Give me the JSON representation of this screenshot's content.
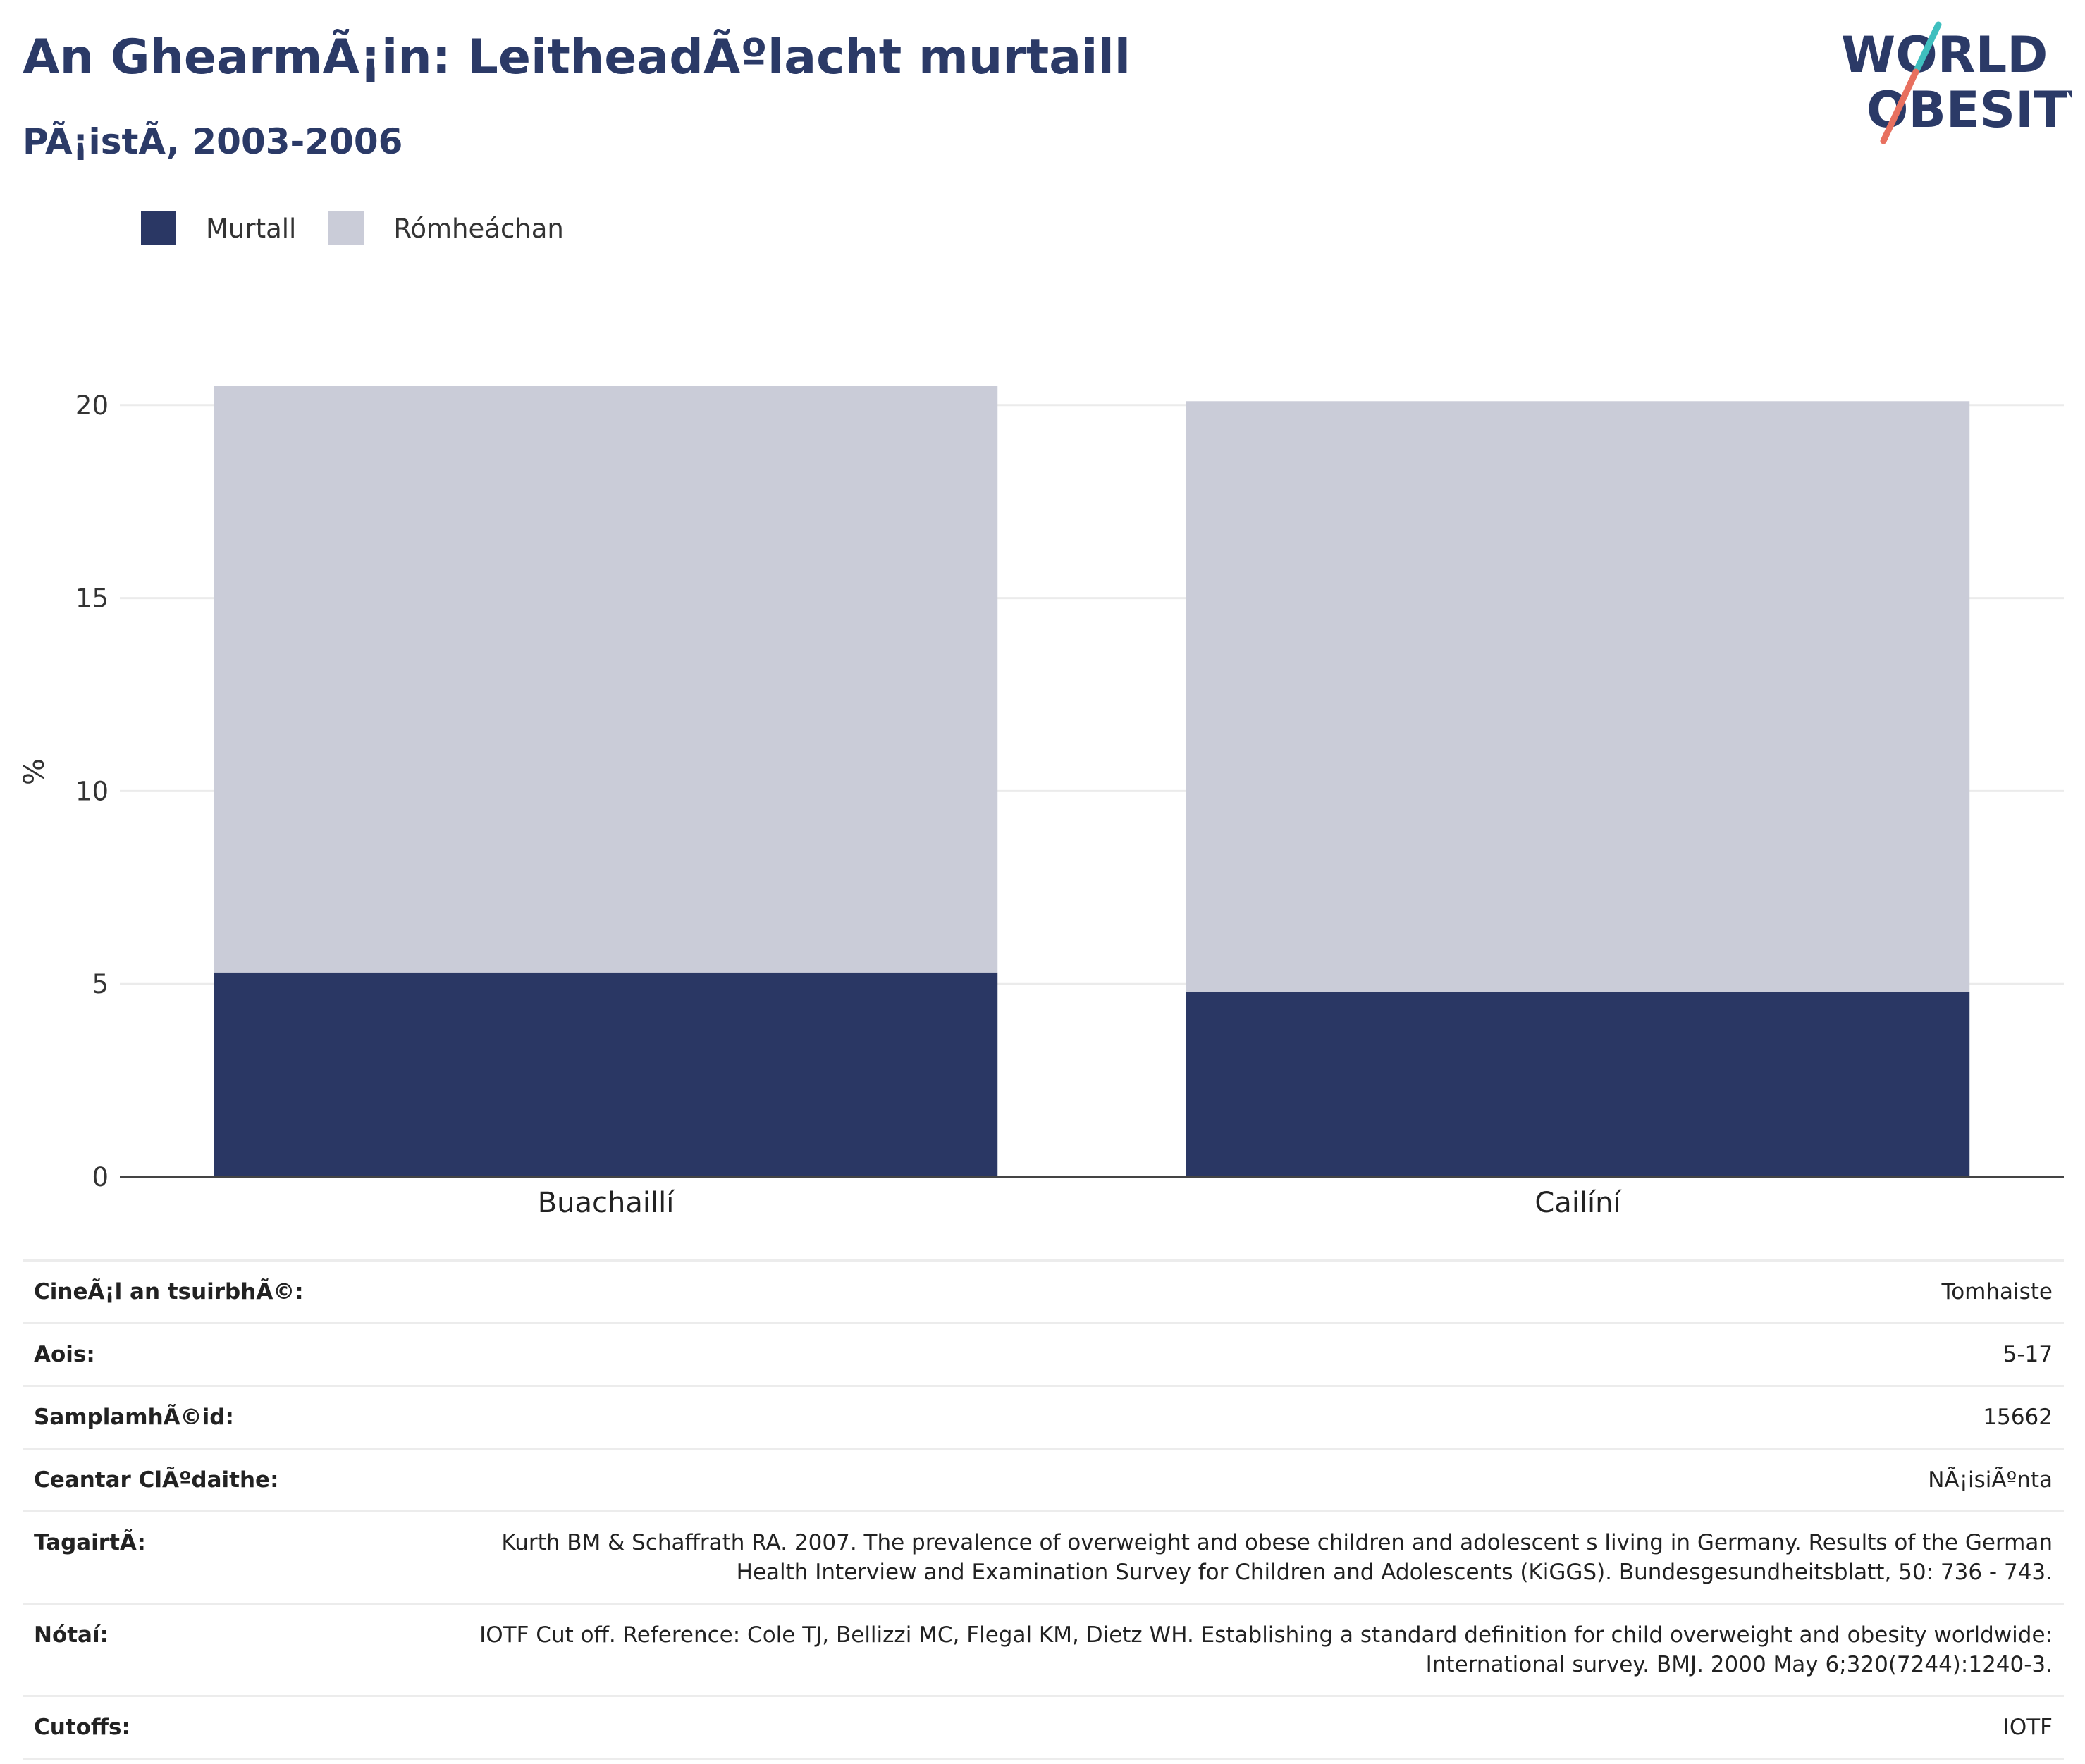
{
  "header": {
    "title": "An GhearmÃ¡in: LeitheadÃºlacht murtaill",
    "subtitle": "PÃ¡istÃ, 2003-2006"
  },
  "logo": {
    "line1": "WORLD",
    "line2": "OBESITY"
  },
  "colors": {
    "obese": "#2a3764",
    "overweight": "#caccd8",
    "title": "#2b3a67",
    "logo_teal": "#3fbfbf",
    "logo_coral": "#e8705f"
  },
  "legend": {
    "items": [
      "Murtall",
      "Rómheáchan"
    ]
  },
  "chart_data": {
    "type": "bar",
    "stacked": true,
    "categories": [
      "Buachaillí",
      "Cailíní"
    ],
    "series": [
      {
        "name": "Murtall",
        "values": [
          5.3,
          4.8
        ]
      },
      {
        "name": "Rómheáchan",
        "values": [
          15.2,
          15.3
        ]
      }
    ],
    "ylabel": "%",
    "ylim": [
      0,
      21
    ],
    "yticks": [
      0,
      5,
      10,
      15,
      20
    ],
    "grid": true,
    "legend_position": "top-left"
  },
  "meta": [
    {
      "key": "CineÃ¡l an tsuirbhÃ©:",
      "value": "Tomhaiste"
    },
    {
      "key": "Aois:",
      "value": "5-17"
    },
    {
      "key": "SamplamhÃ©id:",
      "value": "15662"
    },
    {
      "key": "Ceantar ClÃºdaithe:",
      "value": "NÃ¡isiÃºnta"
    },
    {
      "key": "TagairtÃ:",
      "value": "Kurth BM & Schaffrath RA. 2007. The prevalence of overweight and obese children and adolescent s living in Germany. Results of the German Health Interview and Examination Survey for Children and Adolescents (KiGGS). Bundesgesundheitsblatt, 50: 736 - 743."
    },
    {
      "key": "Nótaí:",
      "value": "IOTF Cut off. Reference: Cole TJ, Bellizzi MC, Flegal KM, Dietz WH. Establishing a standard definition for child overweight and obesity worldwide: International survey. BMJ. 2000 May 6;320(7244):1240-3."
    },
    {
      "key": "Cutoffs:",
      "value": "IOTF"
    }
  ]
}
